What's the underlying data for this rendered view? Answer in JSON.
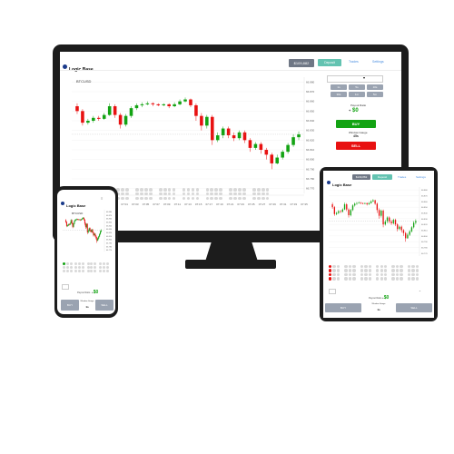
{
  "app": {
    "logo": "Logic Base",
    "balance_label": "",
    "balance": "$109,882"
  },
  "header": {
    "deposit": "Deposit",
    "trade_link": "Trades",
    "settings_link": "Settings"
  },
  "chart": {
    "symbol": "BTCUSD"
  },
  "chart_data": {
    "type": "candlestick",
    "ylabels": [
      "66.880",
      "66.870",
      "66.860",
      "66.850",
      "66.840",
      "66.830",
      "66.820",
      "66.810",
      "66.800",
      "66.790",
      "66.780",
      "66.770"
    ],
    "xlabels": [
      "06:51",
      "06:53",
      "06:55",
      "06:57",
      "06:59",
      "07:01",
      "07:03",
      "07:05",
      "07:07",
      "07:09",
      "07:11",
      "07:13",
      "07:15",
      "07:17",
      "07:19",
      "07:21",
      "07:23",
      "07:25",
      "07:27",
      "07:29",
      "07:31",
      "07:33",
      "07:35"
    ],
    "candles": [
      {
        "o": 66.855,
        "c": 66.85,
        "h": 66.858,
        "l": 66.847
      },
      {
        "o": 66.85,
        "c": 66.838,
        "h": 66.852,
        "l": 66.835
      },
      {
        "o": 66.838,
        "c": 66.84,
        "h": 66.842,
        "l": 66.836
      },
      {
        "o": 66.84,
        "c": 66.843,
        "h": 66.845,
        "l": 66.838
      },
      {
        "o": 66.843,
        "c": 66.842,
        "h": 66.845,
        "l": 66.84
      },
      {
        "o": 66.842,
        "c": 66.846,
        "h": 66.848,
        "l": 66.841
      },
      {
        "o": 66.846,
        "c": 66.855,
        "h": 66.858,
        "l": 66.845
      },
      {
        "o": 66.855,
        "c": 66.846,
        "h": 66.857,
        "l": 66.843
      },
      {
        "o": 66.846,
        "c": 66.836,
        "h": 66.848,
        "l": 66.832
      },
      {
        "o": 66.836,
        "c": 66.845,
        "h": 66.847,
        "l": 66.834
      },
      {
        "o": 66.845,
        "c": 66.853,
        "h": 66.855,
        "l": 66.843
      },
      {
        "o": 66.853,
        "c": 66.856,
        "h": 66.858,
        "l": 66.851
      },
      {
        "o": 66.856,
        "c": 66.857,
        "h": 66.859,
        "l": 66.854
      },
      {
        "o": 66.857,
        "c": 66.858,
        "h": 66.86,
        "l": 66.856
      },
      {
        "o": 66.858,
        "c": 66.857,
        "h": 66.859,
        "l": 66.855
      },
      {
        "o": 66.857,
        "c": 66.856,
        "h": 66.858,
        "l": 66.855
      },
      {
        "o": 66.856,
        "c": 66.857,
        "h": 66.858,
        "l": 66.855
      },
      {
        "o": 66.857,
        "c": 66.855,
        "h": 66.858,
        "l": 66.853
      },
      {
        "o": 66.855,
        "c": 66.857,
        "h": 66.859,
        "l": 66.854
      },
      {
        "o": 66.857,
        "c": 66.86,
        "h": 66.862,
        "l": 66.856
      },
      {
        "o": 66.86,
        "c": 66.862,
        "h": 66.864,
        "l": 66.859
      },
      {
        "o": 66.862,
        "c": 66.856,
        "h": 66.863,
        "l": 66.854
      },
      {
        "o": 66.856,
        "c": 66.845,
        "h": 66.858,
        "l": 66.84
      },
      {
        "o": 66.845,
        "c": 66.835,
        "h": 66.848,
        "l": 66.83
      },
      {
        "o": 66.835,
        "c": 66.844,
        "h": 66.846,
        "l": 66.832
      },
      {
        "o": 66.844,
        "c": 66.82,
        "h": 66.846,
        "l": 66.815
      },
      {
        "o": 66.82,
        "c": 66.825,
        "h": 66.828,
        "l": 66.818
      },
      {
        "o": 66.825,
        "c": 66.832,
        "h": 66.834,
        "l": 66.822
      },
      {
        "o": 66.832,
        "c": 66.825,
        "h": 66.834,
        "l": 66.822
      },
      {
        "o": 66.825,
        "c": 66.822,
        "h": 66.828,
        "l": 66.819
      },
      {
        "o": 66.822,
        "c": 66.828,
        "h": 66.83,
        "l": 66.82
      },
      {
        "o": 66.828,
        "c": 66.82,
        "h": 66.83,
        "l": 66.817
      },
      {
        "o": 66.82,
        "c": 66.812,
        "h": 66.822,
        "l": 66.808
      },
      {
        "o": 66.812,
        "c": 66.816,
        "h": 66.818,
        "l": 66.81
      },
      {
        "o": 66.816,
        "c": 66.81,
        "h": 66.818,
        "l": 66.806
      },
      {
        "o": 66.81,
        "c": 66.805,
        "h": 66.812,
        "l": 66.8
      },
      {
        "o": 66.805,
        "c": 66.796,
        "h": 66.807,
        "l": 66.79
      },
      {
        "o": 66.796,
        "c": 66.802,
        "h": 66.805,
        "l": 66.795
      },
      {
        "o": 66.802,
        "c": 66.808,
        "h": 66.81,
        "l": 66.8
      },
      {
        "o": 66.808,
        "c": 66.815,
        "h": 66.817,
        "l": 66.806
      },
      {
        "o": 66.815,
        "c": 66.823,
        "h": 66.826,
        "l": 66.813
      },
      {
        "o": 66.823,
        "c": 66.826,
        "h": 66.829,
        "l": 66.82
      }
    ]
  },
  "panel": {
    "amounts": [
      "1s",
      "5s",
      "10s",
      "30s",
      "1m",
      "5m"
    ],
    "payout_label": "Payout Ratio",
    "amount_value": "$0",
    "buy": "BUY",
    "sell": "SELL",
    "window_label": "Window Gauge",
    "window_value": "45s"
  },
  "phone": {
    "balance": "$109,882",
    "window_value": "1s",
    "buy": "BUY",
    "sell": "SELL",
    "amount_value": "$0"
  },
  "tablet": {
    "balance": "$109,882",
    "window_value": "1s",
    "buy": "BUY",
    "sell": "SELL",
    "amount_value": "$0"
  },
  "colors": {
    "up": "#13a313",
    "down": "#e81111",
    "accent": "#63c3b1"
  }
}
